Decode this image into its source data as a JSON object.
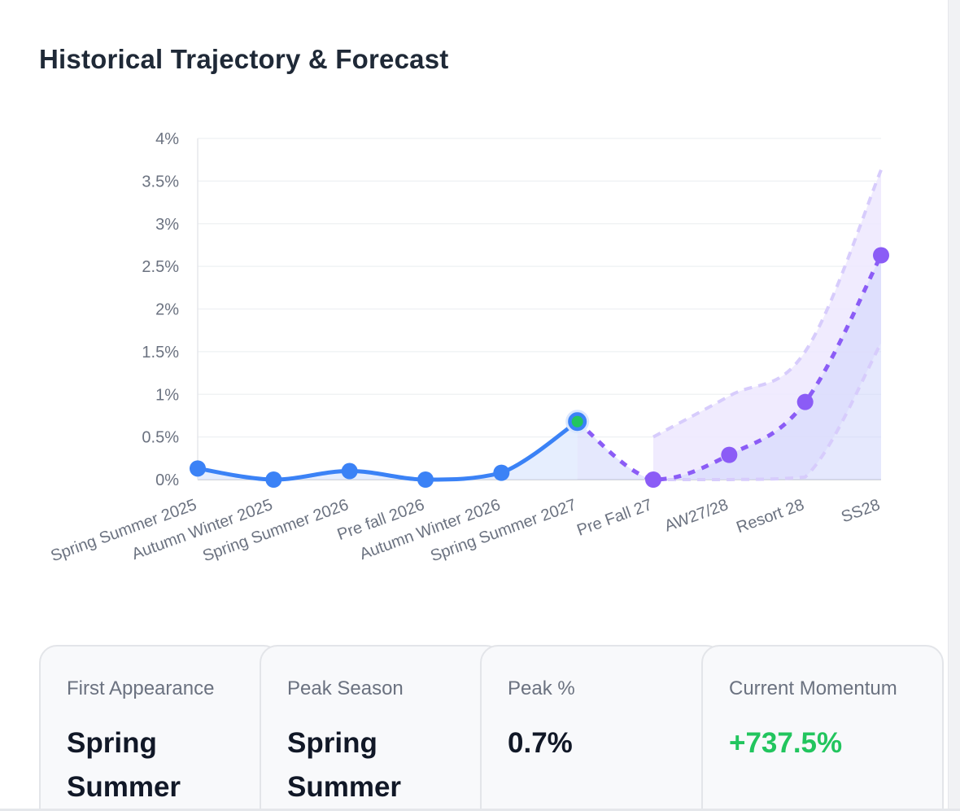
{
  "title": "Historical Trajectory & Forecast",
  "colors": {
    "historical_line": "#3b82f6",
    "historical_fill": "#dbe7fd",
    "forecast_line": "#8b5cf6",
    "forecast_band": "#ede7fe",
    "forecast_band_edge": "#d7ccfc",
    "peak_marker": "#22c55e",
    "grid": "#eef0f3",
    "positive": "#22c55e"
  },
  "chart_data": {
    "type": "line",
    "categories": [
      "Spring Summer 2025",
      "Autumn Winter 2025",
      "Spring Summer 2026",
      "Pre fall 2026",
      "Autumn Winter 2026",
      "Spring Summer 2027",
      "Pre Fall 27",
      "AW27/28",
      "Resort 28",
      "SS28"
    ],
    "y_ticks": [
      "0%",
      "0.5%",
      "1%",
      "1.5%",
      "2%",
      "2.5%",
      "3%",
      "3.5%",
      "4%"
    ],
    "ylim": [
      0,
      4
    ],
    "grid": true,
    "series": [
      {
        "values": [
          0.13,
          0.0,
          0.1,
          0.0,
          0.08,
          0.68,
          null,
          null,
          null,
          null
        ]
      },
      {
        "values": [
          null,
          null,
          null,
          null,
          null,
          0.68,
          0.0,
          0.29,
          0.91,
          2.63
        ]
      }
    ],
    "forecast_band": {
      "start_index": 6,
      "upper": [
        0.5,
        0.98,
        1.5,
        3.63
      ],
      "lower": [
        0.0,
        0.0,
        0.03,
        1.6
      ]
    },
    "peak_index": 5
  },
  "cards": [
    {
      "label": "First Appearance",
      "value": "Spring Summer"
    },
    {
      "label": "Peak Season",
      "value": "Spring Summer"
    },
    {
      "label": "Peak %",
      "value": "0.7%"
    },
    {
      "label": "Current Momentum",
      "value": "+737.5%"
    }
  ]
}
